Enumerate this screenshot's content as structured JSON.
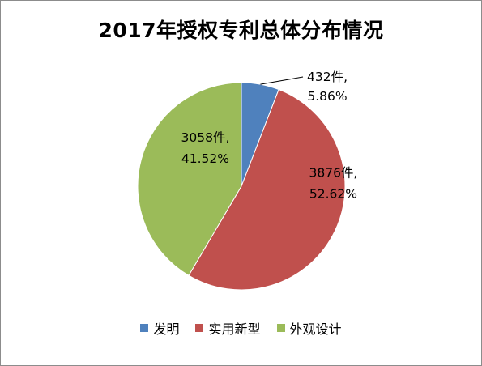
{
  "chart_data": {
    "type": "pie",
    "title": "2017年授权专利总体分布情况",
    "categories": [
      "发明",
      "实用新型",
      "外观设计"
    ],
    "values": [
      432,
      3876,
      3058
    ],
    "percentages": [
      "5.86%",
      "52.62%",
      "41.52%"
    ],
    "value_labels": [
      "432件,",
      "3876件,",
      "3058件,"
    ],
    "colors": [
      "#4f81bd",
      "#c0504d",
      "#9bbb59"
    ],
    "legend_position": "bottom",
    "start_angle_deg": 0,
    "direction": "clockwise"
  }
}
